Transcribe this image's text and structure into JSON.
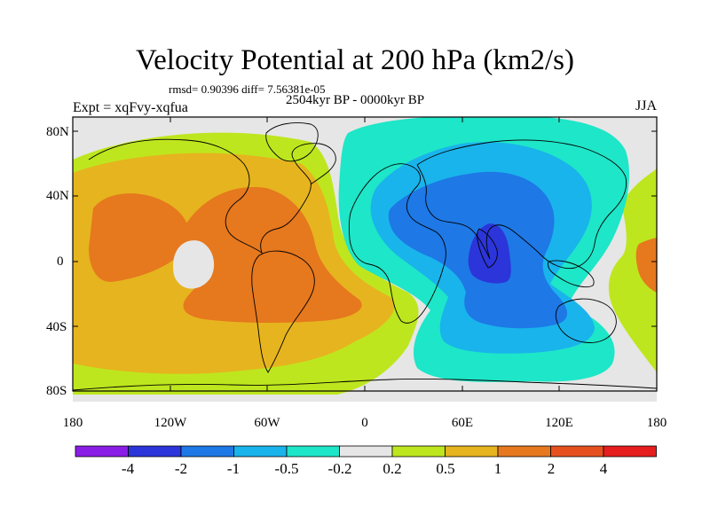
{
  "title": "Velocity Potential at 200 hPa (km2/s)",
  "stats": "rmsd= 0.90396 diff= 7.56381e-05",
  "period": "2504kyr BP - 0000kyr BP",
  "left_label": "Expt = xqFvy-xqfua",
  "right_label": "JJA",
  "lat_labels": [
    "80N",
    "40N",
    "0",
    "40S",
    "80S"
  ],
  "lon_labels": [
    "180",
    "120W",
    "60W",
    "0",
    "60E",
    "120E",
    "180"
  ],
  "colorbar": {
    "labels": [
      "-4",
      "-2",
      "-1",
      "-0.5",
      "-0.2",
      "0.2",
      "0.5",
      "1",
      "2",
      "4"
    ],
    "colors": [
      "#8a1ee6",
      "#2b35d9",
      "#1e78e6",
      "#19b4eb",
      "#1ee6c8",
      "#e6e6e6",
      "#bee61e",
      "#e6b41e",
      "#e6781e",
      "#e6501e",
      "#e61e1e"
    ]
  },
  "colors": {
    "land_outline": "#000000",
    "background": "#ffffff"
  }
}
